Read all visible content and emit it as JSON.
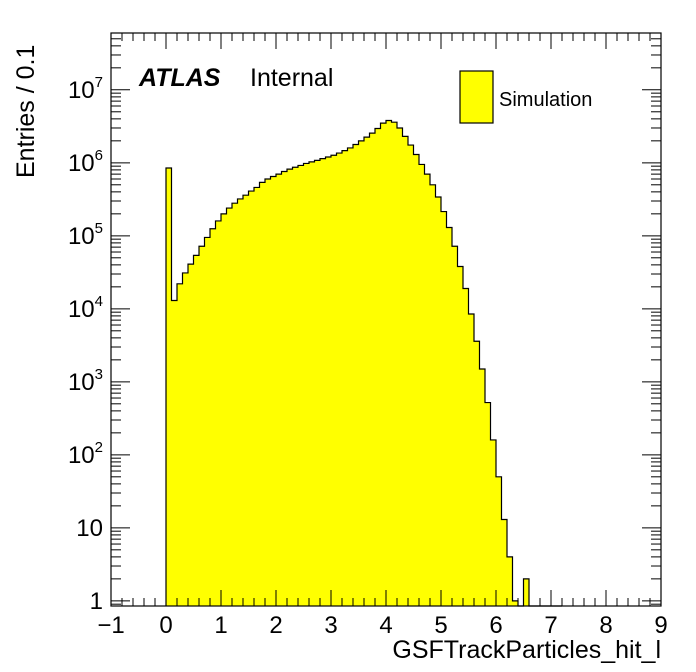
{
  "chart_data": {
    "type": "histogram",
    "title": "",
    "xlabel": "GSFTrackParticles_hit_l",
    "ylabel": "Entries / 0.1",
    "xlim": [
      -1,
      9
    ],
    "ylim": [
      0.85,
      60000000
    ],
    "yscale": "log",
    "bin_width": 0.1,
    "x_ticks": [
      "−1",
      "0",
      "1",
      "2",
      "3",
      "4",
      "5",
      "6",
      "7",
      "8",
      "9"
    ],
    "y_ticks": [
      {
        "value": 1,
        "label": "1",
        "exp": ""
      },
      {
        "value": 10,
        "label": "10",
        "exp": ""
      },
      {
        "value": 100,
        "label": "10",
        "exp": "2"
      },
      {
        "value": 1000,
        "label": "10",
        "exp": "3"
      },
      {
        "value": 10000,
        "label": "10",
        "exp": "4"
      },
      {
        "value": 100000,
        "label": "10",
        "exp": "5"
      },
      {
        "value": 1000000,
        "label": "10",
        "exp": "6"
      },
      {
        "value": 10000000,
        "label": "10",
        "exp": "7"
      }
    ],
    "series": [
      {
        "name": "Simulation",
        "color": "#ffff00",
        "edge_color": "#000000",
        "bins_low_edge": [
          0.0,
          0.1,
          0.2,
          0.3,
          0.4,
          0.5,
          0.6,
          0.7,
          0.8,
          0.9,
          1.0,
          1.1,
          1.2,
          1.3,
          1.4,
          1.5,
          1.6,
          1.7,
          1.8,
          1.9,
          2.0,
          2.1,
          2.2,
          2.3,
          2.4,
          2.5,
          2.6,
          2.7,
          2.8,
          2.9,
          3.0,
          3.1,
          3.2,
          3.3,
          3.4,
          3.5,
          3.6,
          3.7,
          3.8,
          3.9,
          4.0,
          4.1,
          4.2,
          4.3,
          4.4,
          4.5,
          4.6,
          4.7,
          4.8,
          4.9,
          5.0,
          5.1,
          5.2,
          5.3,
          5.4,
          5.5,
          5.6,
          5.7,
          5.8,
          5.9,
          6.0,
          6.1,
          6.2,
          6.3,
          6.4,
          6.5,
          6.6,
          6.7,
          6.8,
          6.9,
          7.0,
          7.1
        ],
        "values": [
          850000,
          13000,
          22000,
          31000,
          41000,
          54000,
          72000,
          95000,
          125000,
          160000,
          200000,
          240000,
          280000,
          320000,
          360000,
          410000,
          460000,
          540000,
          600000,
          650000,
          700000,
          760000,
          820000,
          870000,
          920000,
          980000,
          1030000,
          1080000,
          1140000,
          1200000,
          1270000,
          1360000,
          1470000,
          1600000,
          1780000,
          2000000,
          2250000,
          2550000,
          2950000,
          3500000,
          3800000,
          3600000,
          3000000,
          2300000,
          1750000,
          1300000,
          950000,
          700000,
          500000,
          340000,
          215000,
          130000,
          72000,
          38000,
          19000,
          8500,
          3600,
          1500,
          520,
          160,
          50,
          13,
          4,
          1,
          0,
          2,
          0,
          0,
          0,
          0,
          0,
          0
        ],
        "values_note": ""
      }
    ],
    "legend": {
      "entries": [
        "Simulation"
      ],
      "position": "top-right"
    },
    "annotations": [
      {
        "text_bold": "ATLAS",
        "text": "Internal",
        "position": "top-left"
      }
    ]
  },
  "frame_color": "#000000"
}
